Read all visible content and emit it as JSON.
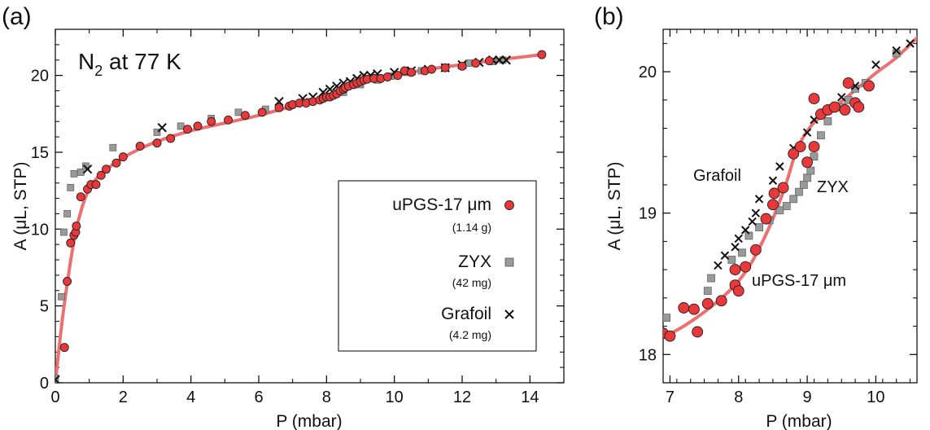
{
  "chart_data": [
    {
      "panel": "(a)",
      "type": "scatter",
      "title_main": "N",
      "title_sub": "2",
      "title_rest": " at 77 K",
      "xlabel": "P (mbar)",
      "ylabel": "A (μL, STP)",
      "xlim": [
        0,
        15
      ],
      "ylim": [
        0,
        23
      ],
      "xticks": [
        0,
        2,
        4,
        6,
        8,
        10,
        12,
        14
      ],
      "yticks": [
        0,
        5,
        10,
        15,
        20
      ],
      "legend": [
        {
          "label": "uPGS-17 μm",
          "sub": "(1.14 g)",
          "marker": "circle"
        },
        {
          "label": "ZYX",
          "sub": "(42 mg)",
          "marker": "square"
        },
        {
          "label": "Grafoil",
          "sub": "(4.2 mg)",
          "marker": "cross"
        }
      ],
      "series": [
        {
          "name": "uPGS-17 μm",
          "marker": "circle",
          "points": [
            [
              0.27,
              2.3
            ],
            [
              0.35,
              6.6
            ],
            [
              0.45,
              9.1
            ],
            [
              0.55,
              9.6
            ],
            [
              0.6,
              9.8
            ],
            [
              0.62,
              10.2
            ],
            [
              0.75,
              12.1
            ],
            [
              0.95,
              12.6
            ],
            [
              1.05,
              12.9
            ],
            [
              1.2,
              12.9
            ],
            [
              1.35,
              13.5
            ],
            [
              1.5,
              13.9
            ],
            [
              1.8,
              14.3
            ],
            [
              2.0,
              14.7
            ],
            [
              2.5,
              15.4
            ],
            [
              3.0,
              15.6
            ],
            [
              3.4,
              15.9
            ],
            [
              3.9,
              16.5
            ],
            [
              4.2,
              16.7
            ],
            [
              4.6,
              17.0
            ],
            [
              5.1,
              17.1
            ],
            [
              5.6,
              17.4
            ],
            [
              6.1,
              17.6
            ],
            [
              6.6,
              17.9
            ],
            [
              6.9,
              18.0
            ],
            [
              7.0,
              18.1
            ],
            [
              7.2,
              18.2
            ],
            [
              7.4,
              18.2
            ],
            [
              7.6,
              18.3
            ],
            [
              7.8,
              18.4
            ],
            [
              7.9,
              18.5
            ],
            [
              8.0,
              18.6
            ],
            [
              8.1,
              18.6
            ],
            [
              8.2,
              18.7
            ],
            [
              8.3,
              18.8
            ],
            [
              8.4,
              19.0
            ],
            [
              8.5,
              19.1
            ],
            [
              8.55,
              19.2
            ],
            [
              8.65,
              19.3
            ],
            [
              8.8,
              19.4
            ],
            [
              8.9,
              19.5
            ],
            [
              9.0,
              19.6
            ],
            [
              9.1,
              19.7
            ],
            [
              9.2,
              19.75
            ],
            [
              9.4,
              19.8
            ],
            [
              9.6,
              19.8
            ],
            [
              9.8,
              19.9
            ],
            [
              10.1,
              20.0
            ],
            [
              10.3,
              20.3
            ],
            [
              10.5,
              20.2
            ],
            [
              10.9,
              20.3
            ],
            [
              11.1,
              20.4
            ],
            [
              11.5,
              20.5
            ],
            [
              12.0,
              20.6
            ],
            [
              12.4,
              20.8
            ],
            [
              12.8,
              20.95
            ],
            [
              14.35,
              21.35
            ]
          ]
        },
        {
          "name": "ZYX",
          "marker": "square",
          "points": [
            [
              0.0,
              0.3
            ],
            [
              0.18,
              5.6
            ],
            [
              0.25,
              9.8
            ],
            [
              0.35,
              11.0
            ],
            [
              0.45,
              12.7
            ],
            [
              0.55,
              13.6
            ],
            [
              0.75,
              13.7
            ],
            [
              0.9,
              14.1
            ],
            [
              1.7,
              15.3
            ],
            [
              3.0,
              16.3
            ],
            [
              3.7,
              16.7
            ],
            [
              4.6,
              17.2
            ],
            [
              5.4,
              17.6
            ],
            [
              6.2,
              17.8
            ],
            [
              7.5,
              18.3
            ],
            [
              8.0,
              18.6
            ],
            [
              8.5,
              18.9
            ],
            [
              9.0,
              19.4
            ],
            [
              9.5,
              19.7
            ],
            [
              9.9,
              19.95
            ],
            [
              10.3,
              20.2
            ],
            [
              10.8,
              20.3
            ],
            [
              11.5,
              20.5
            ],
            [
              12.2,
              20.8
            ],
            [
              12.9,
              20.9
            ],
            [
              13.2,
              21.0
            ]
          ]
        },
        {
          "name": "Grafoil",
          "marker": "cross",
          "points": [
            [
              0.0,
              0.2
            ],
            [
              0.95,
              13.9
            ],
            [
              3.15,
              16.6
            ],
            [
              6.6,
              18.3
            ],
            [
              7.3,
              18.5
            ],
            [
              7.6,
              18.6
            ],
            [
              7.9,
              18.9
            ],
            [
              8.1,
              19.1
            ],
            [
              8.3,
              19.3
            ],
            [
              8.5,
              19.5
            ],
            [
              8.7,
              19.6
            ],
            [
              8.9,
              19.8
            ],
            [
              9.1,
              20.0
            ],
            [
              9.3,
              20.0
            ],
            [
              9.5,
              20.1
            ],
            [
              10.0,
              20.2
            ],
            [
              10.5,
              20.3
            ],
            [
              11.0,
              20.4
            ],
            [
              11.5,
              20.5
            ],
            [
              12.0,
              20.7
            ],
            [
              12.5,
              20.85
            ],
            [
              12.9,
              21.0
            ],
            [
              13.1,
              21.0
            ],
            [
              13.3,
              21.0
            ]
          ]
        }
      ],
      "fit_curve": [
        [
          0,
          0
        ],
        [
          0.2,
          4.0
        ],
        [
          0.4,
          7.2
        ],
        [
          0.6,
          9.8
        ],
        [
          0.8,
          11.5
        ],
        [
          1.0,
          12.6
        ],
        [
          1.3,
          13.5
        ],
        [
          1.7,
          14.2
        ],
        [
          2.2,
          14.9
        ],
        [
          3.0,
          15.7
        ],
        [
          4.0,
          16.4
        ],
        [
          5.0,
          16.9
        ],
        [
          6.0,
          17.4
        ],
        [
          7.0,
          18.0
        ],
        [
          8.0,
          18.6
        ],
        [
          8.5,
          19.0
        ],
        [
          9.0,
          19.5
        ],
        [
          9.5,
          19.8
        ],
        [
          10.0,
          20.0
        ],
        [
          11.0,
          20.4
        ],
        [
          12.0,
          20.7
        ],
        [
          13.0,
          21.0
        ],
        [
          14.35,
          21.35
        ]
      ]
    },
    {
      "panel": "(b)",
      "type": "scatter",
      "xlabel": "P (mbar)",
      "ylabel": "A (μL, STP)",
      "xlim": [
        6.9,
        10.6
      ],
      "ylim": [
        17.8,
        20.3
      ],
      "xticks": [
        7,
        8,
        9,
        10
      ],
      "yticks": [
        18,
        19,
        20
      ],
      "annotations": [
        "Grafoil",
        "ZYX",
        "uPGS-17 μm"
      ],
      "series": [
        {
          "name": "uPGS-17 μm",
          "marker": "circle",
          "points": [
            [
              6.9,
              18.15
            ],
            [
              7.0,
              18.13
            ],
            [
              7.2,
              18.33
            ],
            [
              7.35,
              18.32
            ],
            [
              7.4,
              18.16
            ],
            [
              7.55,
              18.36
            ],
            [
              7.75,
              18.38
            ],
            [
              7.95,
              18.49
            ],
            [
              8.0,
              18.45
            ],
            [
              7.95,
              18.6
            ],
            [
              8.1,
              18.62
            ],
            [
              8.25,
              18.74
            ],
            [
              8.4,
              18.96
            ],
            [
              8.5,
              19.06
            ],
            [
              8.52,
              19.14
            ],
            [
              8.65,
              19.18
            ],
            [
              8.8,
              19.42
            ],
            [
              8.9,
              19.47
            ],
            [
              9.0,
              19.36
            ],
            [
              9.1,
              19.47
            ],
            [
              9.1,
              19.81
            ],
            [
              9.2,
              19.7
            ],
            [
              9.3,
              19.73
            ],
            [
              9.4,
              19.75
            ],
            [
              9.55,
              19.73
            ],
            [
              9.6,
              19.92
            ],
            [
              9.7,
              19.78
            ],
            [
              9.75,
              19.75
            ],
            [
              9.9,
              19.9
            ]
          ]
        },
        {
          "name": "ZYX",
          "marker": "square",
          "points": [
            [
              6.95,
              18.26
            ],
            [
              7.55,
              18.45
            ],
            [
              7.6,
              18.54
            ],
            [
              7.9,
              18.67
            ],
            [
              8.05,
              18.72
            ],
            [
              8.15,
              18.84
            ],
            [
              8.3,
              18.9
            ],
            [
              8.45,
              18.95
            ],
            [
              8.6,
              19.02
            ],
            [
              8.7,
              19.05
            ],
            [
              8.8,
              19.1
            ],
            [
              8.88,
              19.15
            ],
            [
              8.95,
              19.2
            ],
            [
              9.0,
              19.25
            ],
            [
              9.05,
              19.3
            ],
            [
              9.1,
              19.4
            ],
            [
              9.2,
              19.55
            ],
            [
              9.3,
              19.65
            ],
            [
              9.5,
              19.75
            ],
            [
              9.6,
              19.8
            ],
            [
              9.7,
              19.88
            ],
            [
              9.85,
              19.92
            ],
            [
              10.3,
              20.13
            ]
          ]
        },
        {
          "name": "Grafoil",
          "marker": "cross",
          "points": [
            [
              7.7,
              18.63
            ],
            [
              7.8,
              18.7
            ],
            [
              7.95,
              18.76
            ],
            [
              8.0,
              18.82
            ],
            [
              8.1,
              18.88
            ],
            [
              8.2,
              18.94
            ],
            [
              8.25,
              19.0
            ],
            [
              8.3,
              19.1
            ],
            [
              8.5,
              19.23
            ],
            [
              8.6,
              19.33
            ],
            [
              8.8,
              19.46
            ],
            [
              9.0,
              19.57
            ],
            [
              9.1,
              19.66
            ],
            [
              9.3,
              19.73
            ],
            [
              9.5,
              19.82
            ],
            [
              9.7,
              19.9
            ],
            [
              10.0,
              20.05
            ],
            [
              10.3,
              20.15
            ],
            [
              10.5,
              20.2
            ]
          ]
        }
      ],
      "fit_curve": [
        [
          6.9,
          18.12
        ],
        [
          7.2,
          18.2
        ],
        [
          7.5,
          18.3
        ],
        [
          7.8,
          18.42
        ],
        [
          8.0,
          18.52
        ],
        [
          8.2,
          18.66
        ],
        [
          8.4,
          18.85
        ],
        [
          8.55,
          19.02
        ],
        [
          8.7,
          19.22
        ],
        [
          8.8,
          19.38
        ],
        [
          8.9,
          19.5
        ],
        [
          9.0,
          19.58
        ],
        [
          9.1,
          19.64
        ],
        [
          9.3,
          19.72
        ],
        [
          9.5,
          19.79
        ],
        [
          9.7,
          19.87
        ],
        [
          10.0,
          19.99
        ],
        [
          10.3,
          20.1
        ],
        [
          10.6,
          20.24
        ]
      ]
    }
  ]
}
